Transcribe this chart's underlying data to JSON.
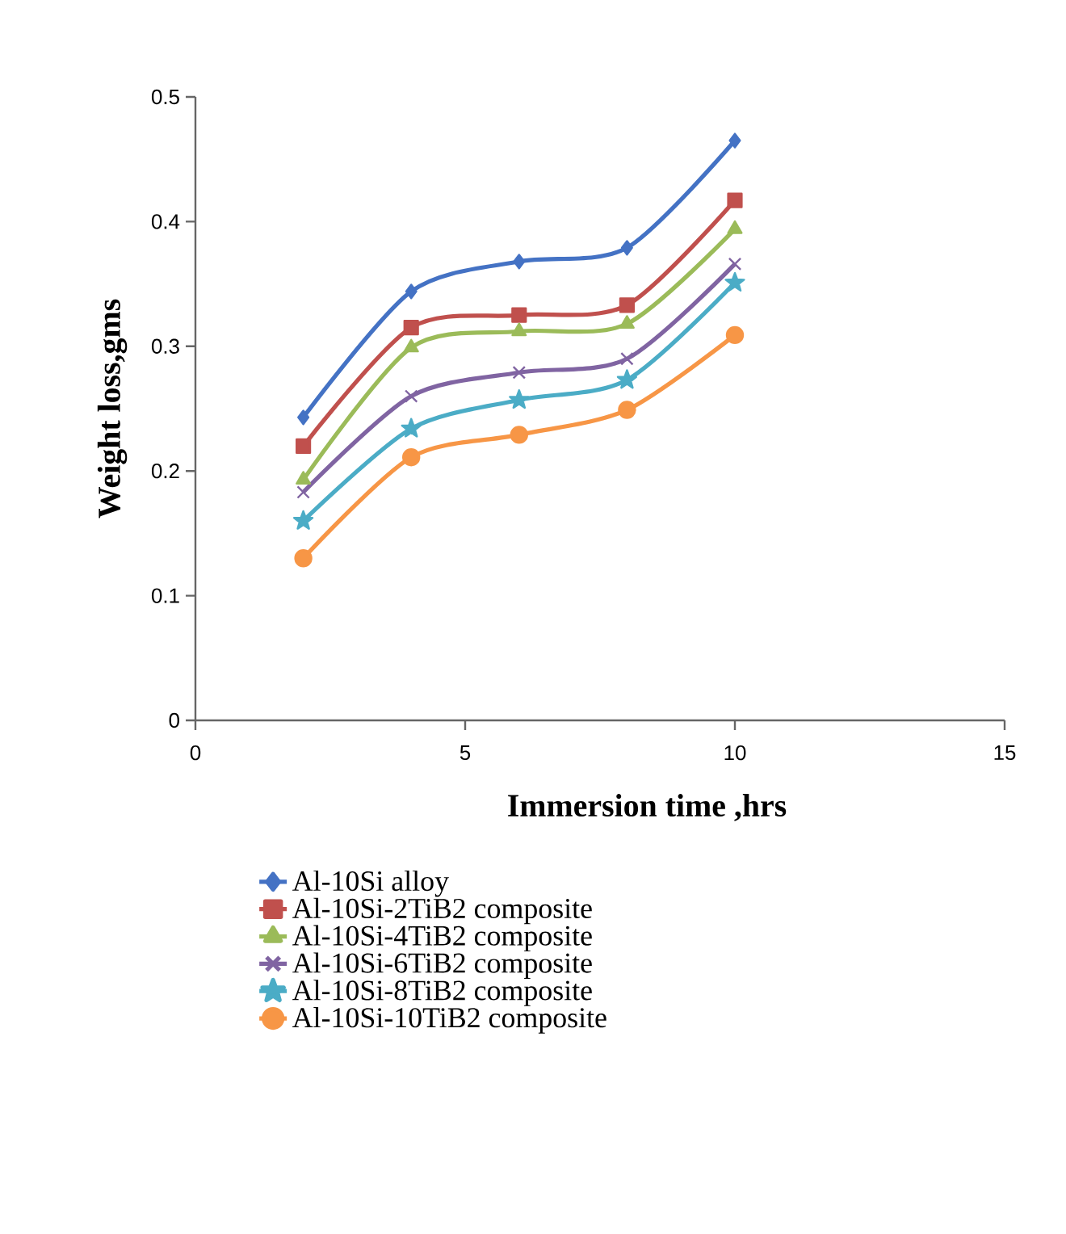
{
  "chart_data": {
    "type": "line",
    "xlabel": "Immersion  time ,hrs",
    "ylabel": "Weight loss,gms",
    "x": [
      2,
      4,
      6,
      8,
      10
    ],
    "series": [
      {
        "name": "Al-10Si alloy",
        "color": "#4472c4",
        "marker": "diamond",
        "values": [
          0.243,
          0.344,
          0.368,
          0.379,
          0.465
        ]
      },
      {
        "name": "Al-10Si-2TiB2 composite",
        "color": "#c0504d",
        "marker": "square",
        "values": [
          0.22,
          0.315,
          0.325,
          0.333,
          0.417
        ]
      },
      {
        "name": "Al-10Si-4TiB2 composite",
        "color": "#9bbb59",
        "marker": "triangle",
        "values": [
          0.193,
          0.299,
          0.312,
          0.318,
          0.394
        ]
      },
      {
        "name": "Al-10Si-6TiB2 composite",
        "color": "#8064a2",
        "marker": "cross",
        "values": [
          0.183,
          0.26,
          0.279,
          0.29,
          0.366
        ]
      },
      {
        "name": "Al-10Si-8TiB2 composite",
        "color": "#4bacc6",
        "marker": "star",
        "values": [
          0.16,
          0.234,
          0.257,
          0.273,
          0.351
        ]
      },
      {
        "name": "Al-10Si-10TiB2 composite",
        "color": "#f79646",
        "marker": "circle",
        "values": [
          0.13,
          0.211,
          0.229,
          0.249,
          0.309
        ]
      }
    ],
    "xlim": [
      0,
      15
    ],
    "xticks": [
      0,
      5,
      10,
      15
    ],
    "ylim": [
      0,
      0.5
    ],
    "yticks": [
      0,
      0.1,
      0.2,
      0.3,
      0.4,
      0.5
    ],
    "grid": false,
    "legend": "bottom left",
    "line_style": "solid"
  }
}
